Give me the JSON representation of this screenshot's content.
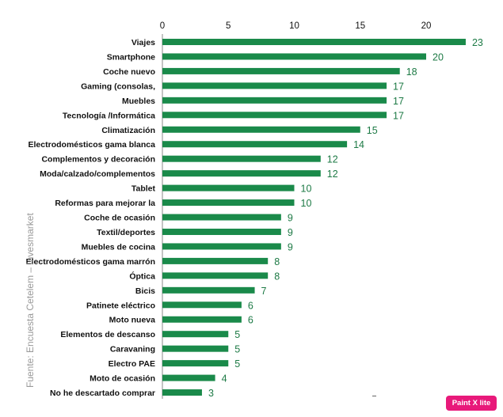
{
  "chart_data": {
    "type": "bar",
    "orientation": "horizontal",
    "title": "",
    "xlabel": "",
    "ylabel": "",
    "xlim": [
      0,
      23
    ],
    "x_ticks": [
      0,
      5,
      10,
      15,
      20
    ],
    "x_axis_position": "top",
    "grid": false,
    "legend": "none",
    "categories": [
      "Viajes",
      "Smartphone",
      "Coche nuevo",
      "Gaming (consolas,",
      "Muebles",
      "Tecnología /Informática",
      "Climatización",
      "Electrodomésticos gama blanca",
      "Complementos y decoración",
      "Moda/calzado/complementos",
      "Tablet",
      "Reformas para mejorar la",
      "Coche de ocasión",
      "Textil/deportes",
      "Muebles de cocina",
      "Electrodomésticos gama marrón",
      "Óptica",
      "Bicis",
      "Patinete eléctrico",
      "Moto nueva",
      "Elementos de descanso",
      "Caravaning",
      "Electro PAE",
      "Moto de ocasión",
      "No he descartado comprar"
    ],
    "values": [
      23,
      20,
      18,
      17,
      17,
      17,
      15,
      14,
      12,
      12,
      10,
      10,
      9,
      9,
      9,
      8,
      8,
      7,
      6,
      6,
      5,
      5,
      5,
      4,
      3
    ],
    "bar_color": "#1a8a4a",
    "value_label_color": "#1d7a45"
  },
  "source_note": "Fuente: Encuesta Cetelem – Invesmarket",
  "watermark": {
    "text": "Paint X lite",
    "color": "#e8197a"
  }
}
